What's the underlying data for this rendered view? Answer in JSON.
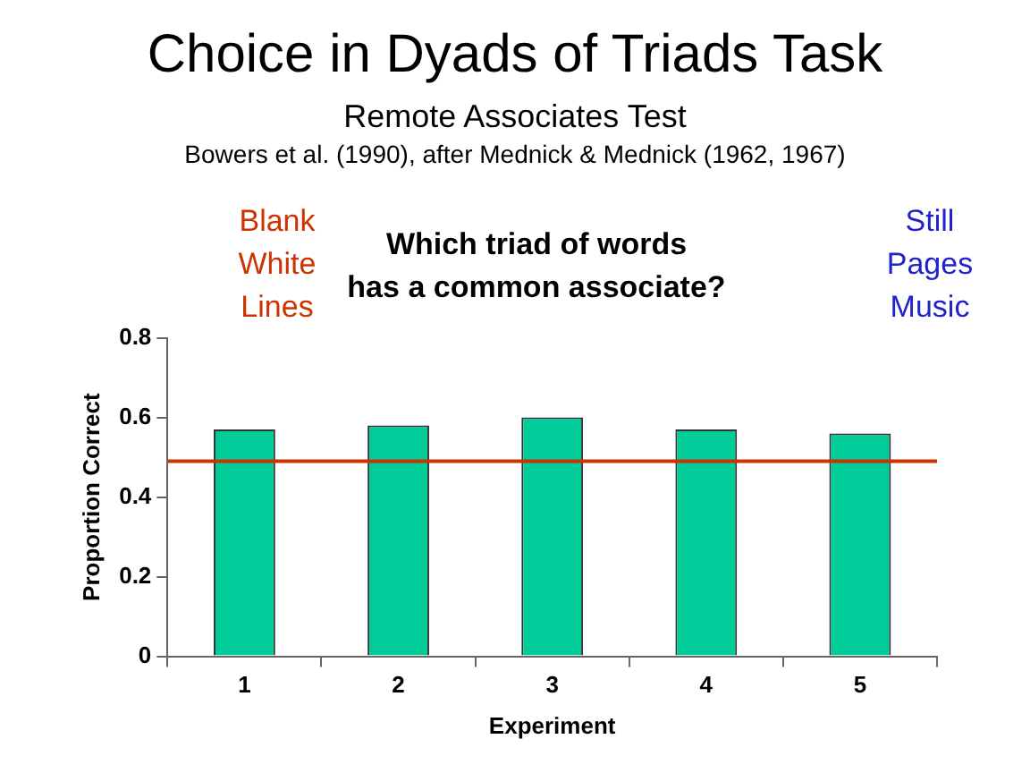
{
  "chart_data": {
    "type": "bar",
    "title": "Choice in Dyads of Triads Task",
    "subtitle": "Remote Associates Test",
    "annotations": [
      "Bowers et al. (1990), after Mednick & Mednick (1962, 1967)",
      "Blank\nWhite\nLines",
      "Which triad of words\nhas a common associate?",
      "Still\nPages\nMusic"
    ],
    "categories": [
      "1",
      "2",
      "3",
      "4",
      "5"
    ],
    "values": [
      0.57,
      0.58,
      0.6,
      0.57,
      0.56
    ],
    "color": "#00cc99",
    "xlabel": "Experiment",
    "ylabel": "Proportion Correct",
    "ylim": [
      0,
      0.8
    ],
    "yticks": [
      0,
      0.2,
      0.4,
      0.6,
      0.8
    ],
    "ref_lines": [
      {
        "axis": "y",
        "value": 0.49,
        "color": "#cc3300"
      }
    ],
    "grid": false,
    "legend": false
  }
}
